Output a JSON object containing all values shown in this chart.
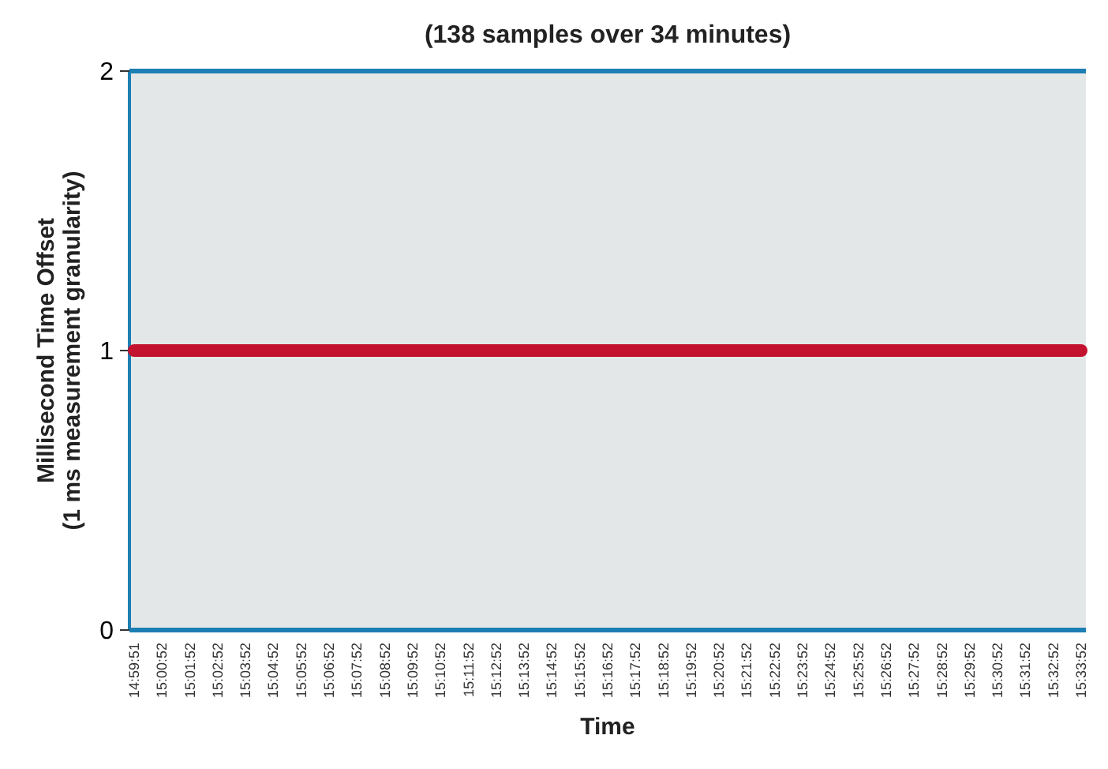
{
  "chart_data": {
    "type": "line",
    "title": "(138 samples over 34 minutes)",
    "xlabel": "Time",
    "ylabel": "Millisecond Time Offset\n(1 ms measurement granularity)",
    "categories": [
      "14:59:51",
      "15:00:52",
      "15:01:52",
      "15:02:52",
      "15:03:52",
      "15:04:52",
      "15:05:52",
      "15:06:52",
      "15:07:52",
      "15:08:52",
      "15:09:52",
      "15:10:52",
      "15:11:52",
      "15:12:52",
      "15:13:52",
      "15:14:52",
      "15:15:52",
      "15:16:52",
      "15:17:52",
      "15:18:52",
      "15:19:52",
      "15:20:52",
      "15:21:52",
      "15:22:52",
      "15:23:52",
      "15:24:52",
      "15:25:52",
      "15:26:52",
      "15:27:52",
      "15:28:52",
      "15:29:52",
      "15:30:52",
      "15:31:52",
      "15:32:52",
      "15:33:52"
    ],
    "series": [
      {
        "color": "#c3122f",
        "values": [
          1,
          1,
          1,
          1,
          1,
          1,
          1,
          1,
          1,
          1,
          1,
          1,
          1,
          1,
          1,
          1,
          1,
          1,
          1,
          1,
          1,
          1,
          1,
          1,
          1,
          1,
          1,
          1,
          1,
          1,
          1,
          1,
          1,
          1,
          1
        ]
      }
    ],
    "ylim": [
      0,
      2
    ],
    "yticks": [
      0,
      1,
      2
    ],
    "line_style": "solid"
  }
}
